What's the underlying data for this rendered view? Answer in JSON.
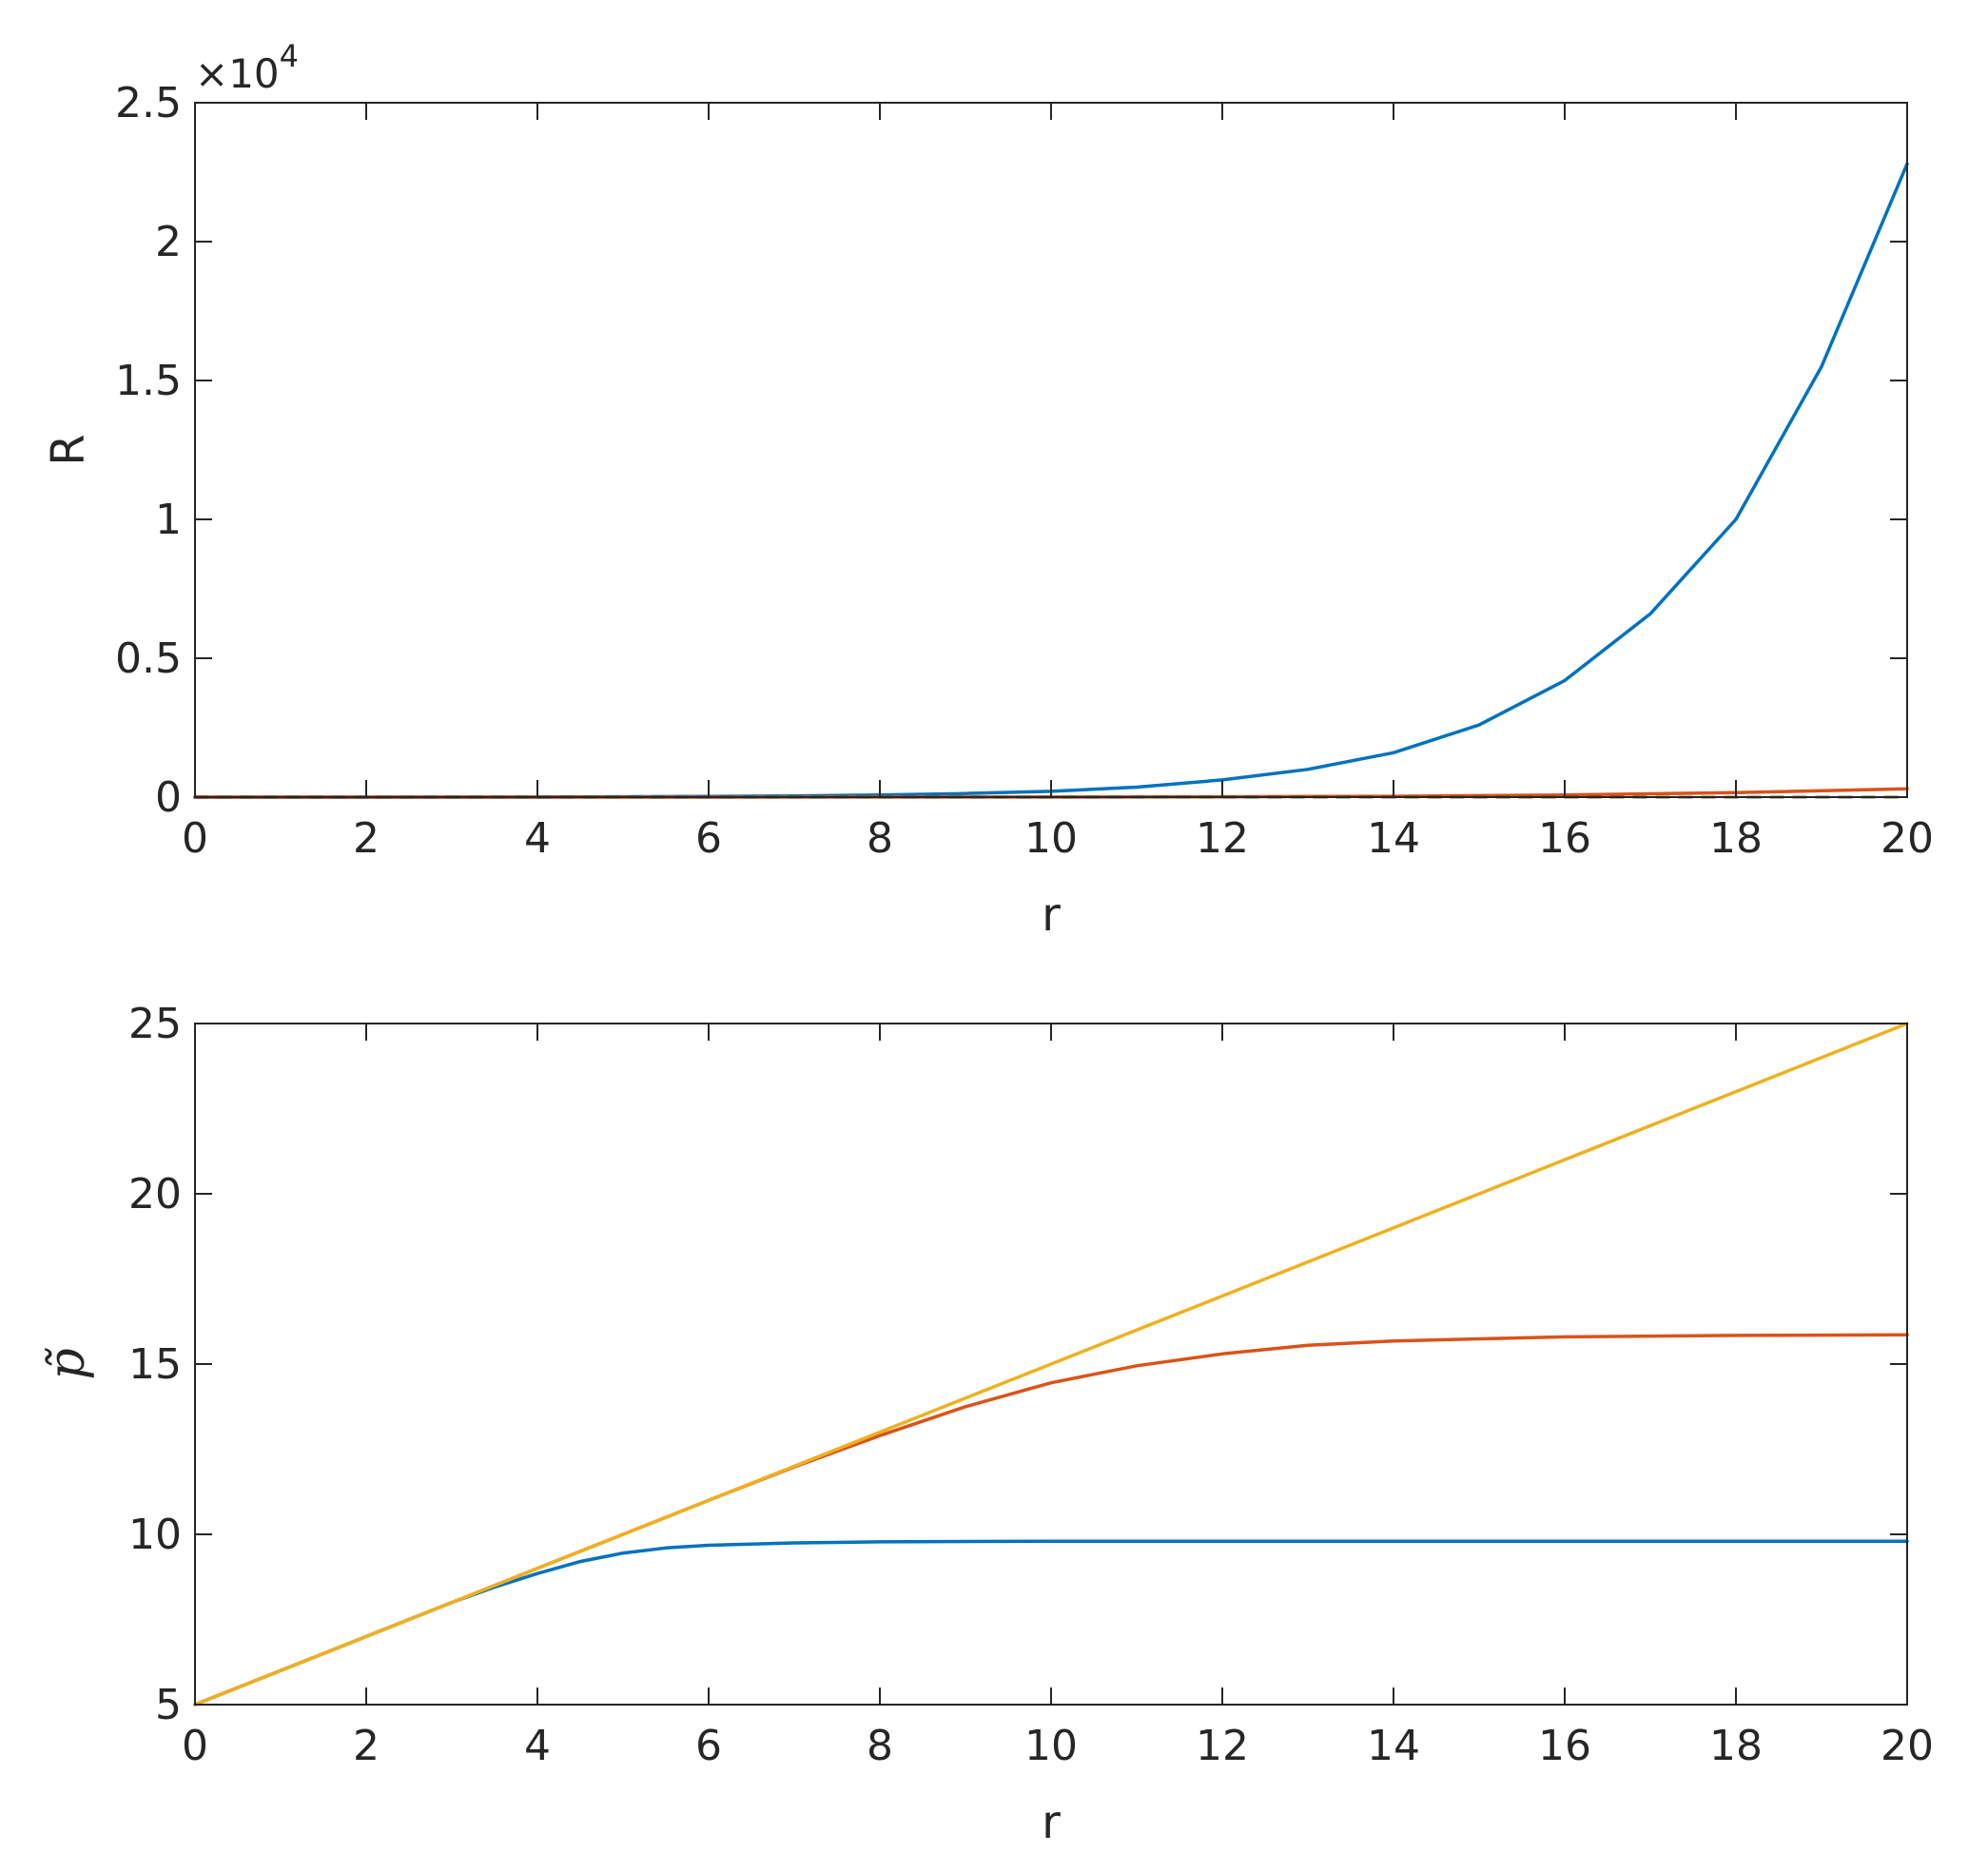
{
  "chart_data": [
    {
      "type": "line",
      "xlabel": "r",
      "ylabel": "R",
      "xlim": [
        0,
        20
      ],
      "ylim": [
        0,
        25000
      ],
      "xticks": [
        "0",
        "2",
        "4",
        "6",
        "8",
        "10",
        "12",
        "14",
        "16",
        "18",
        "20"
      ],
      "yticks": [
        "0",
        "0.5",
        "1",
        "1.5",
        "2",
        "2.5"
      ],
      "y_exponent_label": {
        "base": "×10",
        "power": "4"
      },
      "grid": false,
      "box": true,
      "series": [
        {
          "color": "#0072BD",
          "x": [
            0,
            2,
            4,
            6,
            7,
            8,
            9,
            10,
            11,
            12,
            13,
            14,
            15,
            16,
            17,
            18,
            19,
            20
          ],
          "y": [
            0,
            0,
            5,
            25,
            45,
            80,
            130,
            210,
            360,
            620,
            1000,
            1600,
            2600,
            4200,
            6600,
            10000,
            15500,
            22800
          ]
        },
        {
          "color": "#D95319",
          "x": [
            0,
            10,
            12,
            14,
            16,
            18,
            20
          ],
          "y": [
            0,
            5,
            12,
            30,
            80,
            160,
            300
          ]
        },
        {
          "color": "#EDB120",
          "dashed": true,
          "x": [
            0,
            20
          ],
          "y": [
            0,
            0
          ]
        },
        {
          "color": "#000000",
          "dashed": true,
          "x": [
            0,
            20
          ],
          "y": [
            0,
            0
          ]
        }
      ]
    },
    {
      "type": "line",
      "xlabel": "r",
      "ylabel": "p̃",
      "xlim": [
        0,
        20
      ],
      "ylim": [
        5,
        25
      ],
      "xticks": [
        "0",
        "2",
        "4",
        "6",
        "8",
        "10",
        "12",
        "14",
        "16",
        "18",
        "20"
      ],
      "yticks": [
        "5",
        "10",
        "15",
        "20",
        "25"
      ],
      "grid": false,
      "box": true,
      "series": [
        {
          "color": "#0072BD",
          "x": [
            0,
            1,
            2,
            3,
            3.5,
            4,
            4.5,
            5,
            5.5,
            6,
            7,
            8,
            10,
            12,
            14,
            16,
            18,
            20
          ],
          "y": [
            5,
            6,
            7,
            8,
            8.45,
            8.85,
            9.2,
            9.45,
            9.6,
            9.68,
            9.75,
            9.78,
            9.8,
            9.8,
            9.8,
            9.8,
            9.8,
            9.8
          ]
        },
        {
          "color": "#D95319",
          "x": [
            0,
            2,
            4,
            6,
            7,
            8,
            9,
            10,
            11,
            12,
            13,
            14,
            16,
            18,
            20
          ],
          "y": [
            5,
            7,
            9,
            11,
            11.98,
            12.9,
            13.75,
            14.45,
            14.95,
            15.3,
            15.55,
            15.68,
            15.8,
            15.84,
            15.86
          ]
        },
        {
          "color": "#EDB120",
          "x": [
            0,
            20
          ],
          "y": [
            5,
            25
          ]
        }
      ]
    }
  ]
}
